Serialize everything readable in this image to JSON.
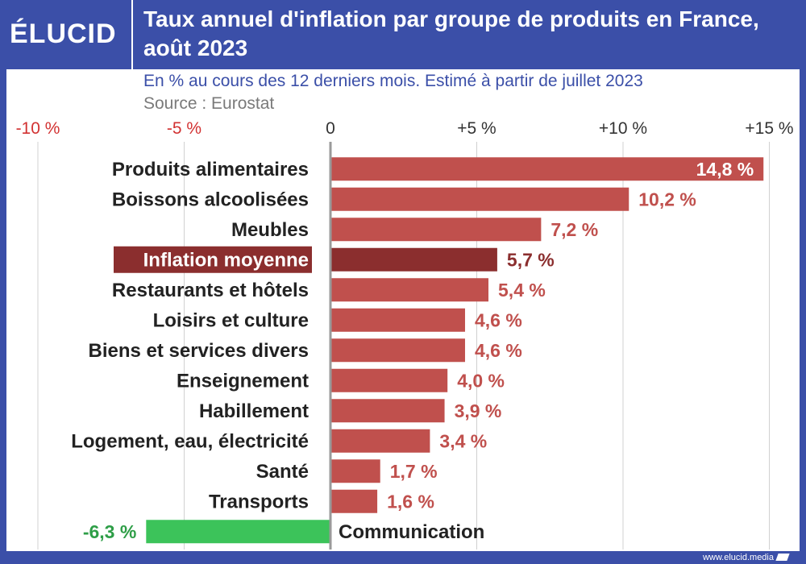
{
  "brand": {
    "logo_text": "ÉLUCID"
  },
  "header": {
    "title": "Taux annuel d'inflation par groupe de produits en France, août 2023"
  },
  "subtitle": "En % au cours des 12 derniers mois. Estimé à partir de juillet 2023",
  "source": "Source : Eurostat",
  "footer": {
    "url": "www.elucid.media"
  },
  "colors": {
    "bar": "#c0504d",
    "highlight_bar": "#8b2e2e",
    "negative_bar": "#3cc35a",
    "value_label": "#c0504d",
    "negative_label": "#2e9e47",
    "negative_tick": "#d23232",
    "brand": "#3b4fa8"
  },
  "chart_data": {
    "type": "bar",
    "orientation": "horizontal",
    "xlim": [
      -10,
      15
    ],
    "x_ticks": [
      {
        "value": -10,
        "label": "-10 %"
      },
      {
        "value": -5,
        "label": "-5 %"
      },
      {
        "value": 0,
        "label": "0"
      },
      {
        "value": 5,
        "label": "+5 %"
      },
      {
        "value": 10,
        "label": "+10 %"
      },
      {
        "value": 15,
        "label": "+15 %"
      }
    ],
    "grid": true,
    "bars": [
      {
        "category": "Produits alimentaires",
        "value": 14.8,
        "label": "14,8 %"
      },
      {
        "category": "Boissons alcoolisées",
        "value": 10.2,
        "label": "10,2 %"
      },
      {
        "category": "Meubles",
        "value": 7.2,
        "label": "7,2 %"
      },
      {
        "category": "Inflation moyenne",
        "value": 5.7,
        "label": "5,7 %",
        "highlight": true
      },
      {
        "category": "Restaurants et hôtels",
        "value": 5.4,
        "label": "5,4 %"
      },
      {
        "category": "Loisirs et culture",
        "value": 4.6,
        "label": "4,6 %"
      },
      {
        "category": "Biens et services divers",
        "value": 4.6,
        "label": "4,6 %"
      },
      {
        "category": "Enseignement",
        "value": 4.0,
        "label": "4,0 %"
      },
      {
        "category": "Habillement",
        "value": 3.9,
        "label": "3,9 %"
      },
      {
        "category": "Logement, eau, électricité",
        "value": 3.4,
        "label": "3,4 %"
      },
      {
        "category": "Santé",
        "value": 1.7,
        "label": "1,7 %"
      },
      {
        "category": "Transports",
        "value": 1.6,
        "label": "1,6 %"
      },
      {
        "category": "Communication",
        "value": -6.3,
        "label": "-6,3 %"
      }
    ]
  }
}
